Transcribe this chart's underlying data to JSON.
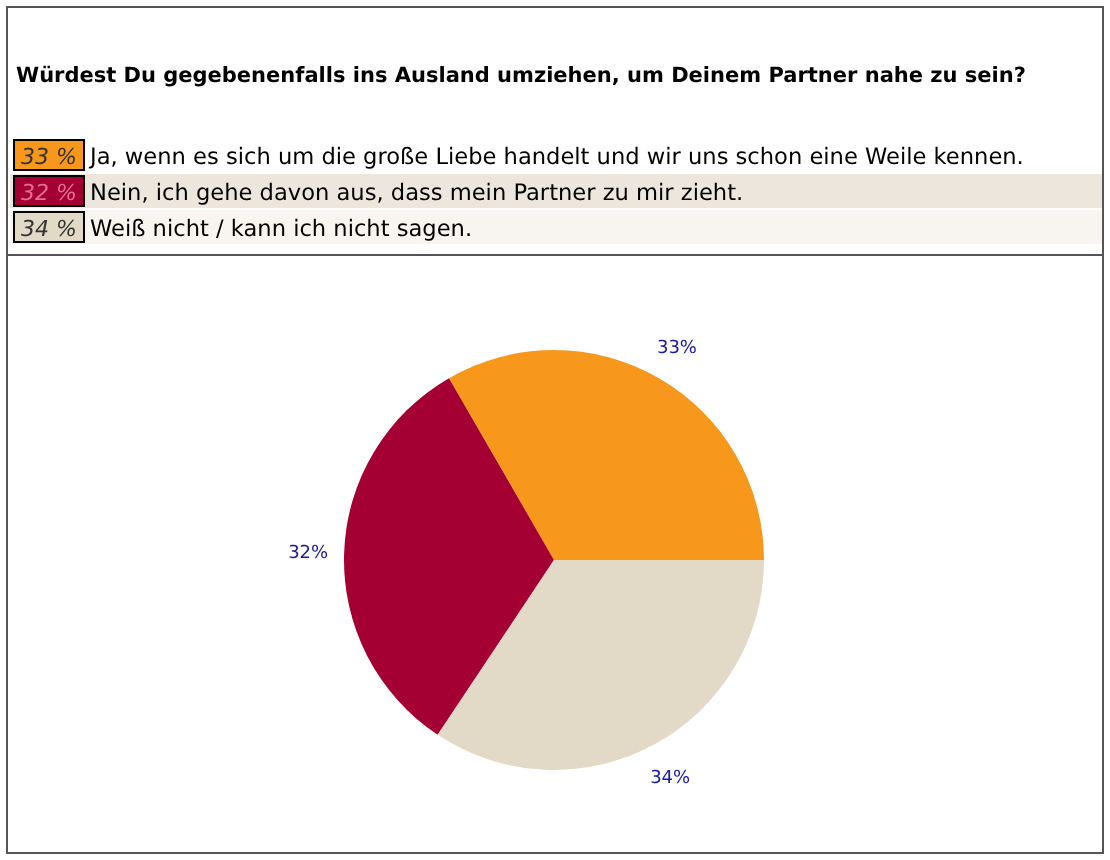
{
  "chart_data": {
    "type": "pie",
    "title": "Würdest Du gegebenenfalls ins Ausland umziehen, um Deinem Partner nahe zu sein?",
    "categories": [
      "Ja, wenn es sich um die große Liebe handelt und wir uns schon eine Weile kennen.",
      "Nein, ich gehe davon aus, dass mein Partner zu mir zieht.",
      "Weiß nicht / kann ich nicht sagen."
    ],
    "values": [
      33,
      32,
      34
    ],
    "colors": [
      "#f7981d",
      "#a50034",
      "#e2d9c6"
    ],
    "value_labels": [
      "33%",
      "32%",
      "34%"
    ],
    "annotations": [
      "33 %",
      "32 %",
      "34 %"
    ],
    "legend": "top"
  }
}
